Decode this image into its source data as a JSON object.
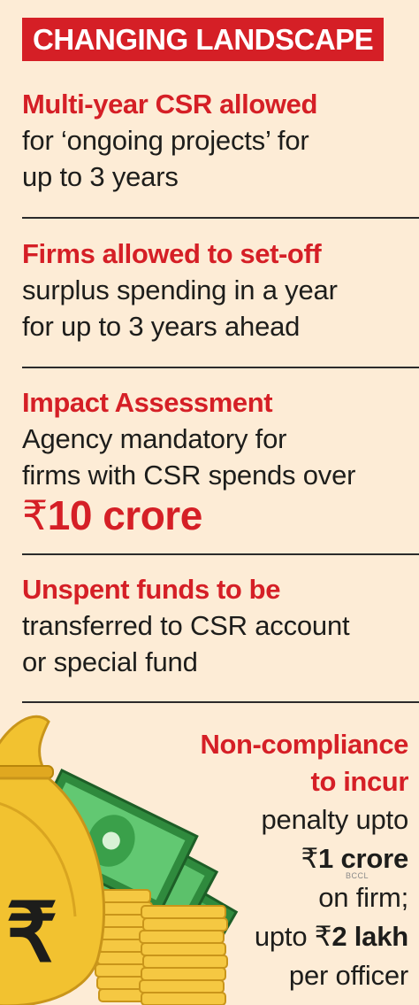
{
  "header": {
    "title": "CHANGING LANDSCAPE"
  },
  "items": [
    {
      "headline": "Multi-year CSR allowed",
      "lines": [
        "for ‘ongoing projects’ for",
        "up to 3 years"
      ]
    },
    {
      "headline": "Firms allowed to set-off",
      "lines": [
        "surplus spending in a year",
        "for up to 3 years ahead"
      ]
    },
    {
      "headline": "Impact Assessment",
      "lines": [
        "Agency mandatory for",
        "firms with CSR spends over"
      ],
      "amount_symbol": "₹",
      "amount": "10 crore"
    },
    {
      "headline": "Unspent funds to be",
      "lines": [
        "transferred to CSR account",
        "or special fund"
      ]
    }
  ],
  "final": {
    "headline_lines": [
      "Non-compliance",
      "to incur"
    ],
    "line1": "penalty upto",
    "amount1_symbol": "₹",
    "amount1": "1 crore",
    "line2": "on firm;",
    "line3_prefix": "upto ",
    "amount2_symbol": "₹",
    "amount2": "2 lakh",
    "line4": "per officer"
  },
  "credit": "BCCL",
  "colors": {
    "accent": "#d51f26",
    "background": "#fdecd6",
    "text": "#1d1d1b",
    "money_green": "#3aa04a",
    "gold": "#f2c230"
  },
  "icons": [
    "money-bag-icon",
    "rupee-icon",
    "banknotes-icon",
    "coin-stack-icon"
  ]
}
